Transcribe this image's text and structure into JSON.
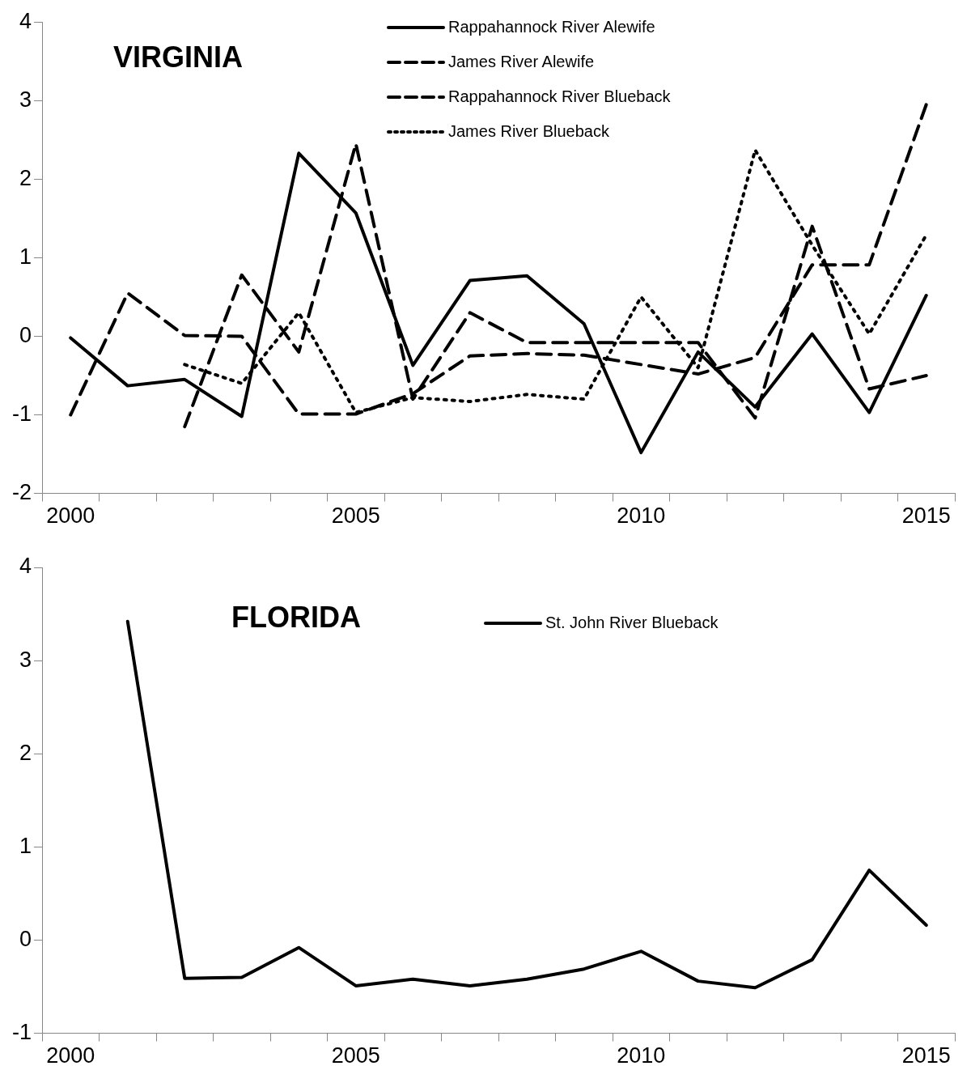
{
  "chart_data": [
    {
      "type": "line",
      "title": "VIRGINIA",
      "categories": [
        "2000",
        null,
        null,
        null,
        null,
        "2005",
        null,
        null,
        null,
        null,
        "2010",
        null,
        null,
        null,
        null,
        "2015"
      ],
      "ylim": [
        -2,
        4
      ],
      "yticks": [
        -2,
        -1,
        0,
        1,
        2,
        3,
        4
      ],
      "grid": false,
      "legend": "top",
      "marker": "none",
      "series": [
        {
          "name": "Rappahannock River Alewife",
          "color": "#000000",
          "line_style": "solid",
          "values": [
            -0.02,
            -0.63,
            -0.55,
            -1.02,
            2.33,
            1.57,
            -0.37,
            0.71,
            0.77,
            0.16,
            -1.48,
            -0.2,
            -0.9,
            0.03,
            -0.97,
            0.52
          ]
        },
        {
          "name": "James River Alewife",
          "color": "#000000",
          "line_style": "dashed",
          "values": [
            null,
            null,
            -1.15,
            0.78,
            -0.2,
            2.45,
            -0.8,
            0.3,
            -0.08,
            -0.08,
            -0.08,
            -0.08,
            -1.04,
            1.4,
            -0.67,
            -0.5
          ]
        },
        {
          "name": "Rappahannock River Blueback",
          "color": "#000000",
          "line_style": "dashed",
          "values": [
            -1.0,
            0.55,
            0.01,
            0.0,
            -0.99,
            -0.99,
            -0.73,
            -0.25,
            -0.22,
            -0.24,
            -0.36,
            -0.48,
            -0.27,
            0.91,
            0.91,
            2.95
          ]
        },
        {
          "name": "James River Blueback",
          "color": "#000000",
          "line_style": "dotted",
          "values": [
            null,
            null,
            -0.36,
            -0.6,
            0.3,
            -0.97,
            -0.78,
            -0.83,
            -0.74,
            -0.8,
            0.5,
            -0.4,
            2.37,
            1.16,
            0.03,
            1.29
          ]
        }
      ]
    },
    {
      "type": "line",
      "title": "FLORIDA",
      "categories": [
        "2000",
        null,
        null,
        null,
        null,
        "2005",
        null,
        null,
        null,
        null,
        "2010",
        null,
        null,
        null,
        null,
        "2015"
      ],
      "ylim": [
        -1,
        4
      ],
      "yticks": [
        -1,
        0,
        1,
        2,
        3,
        4
      ],
      "grid": false,
      "legend": "top",
      "marker": "none",
      "series": [
        {
          "name": "St. John River Blueback",
          "color": "#000000",
          "line_style": "solid",
          "values": [
            null,
            3.42,
            -0.41,
            -0.4,
            -0.08,
            -0.49,
            -0.42,
            -0.49,
            -0.42,
            -0.31,
            -0.12,
            -0.44,
            -0.51,
            -0.21,
            0.75,
            0.16
          ]
        }
      ]
    }
  ]
}
